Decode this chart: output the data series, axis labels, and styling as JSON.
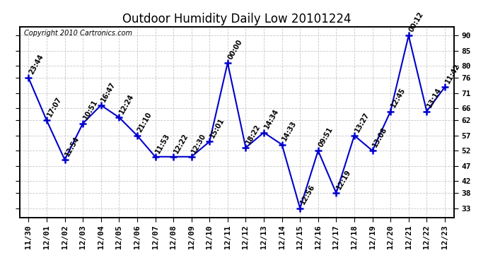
{
  "title": "Outdoor Humidity Daily Low 20101224",
  "copyright": "Copyright 2010 Cartronics.com",
  "x_labels": [
    "11/30",
    "12/01",
    "12/02",
    "12/03",
    "12/04",
    "12/05",
    "12/06",
    "12/07",
    "12/08",
    "12/09",
    "12/10",
    "12/11",
    "12/12",
    "12/13",
    "12/14",
    "12/15",
    "12/16",
    "12/17",
    "12/18",
    "12/19",
    "12/20",
    "12/21",
    "12/22",
    "12/23"
  ],
  "y_values": [
    76,
    62,
    49,
    61,
    67,
    63,
    57,
    50,
    50,
    50,
    55,
    81,
    53,
    58,
    54,
    33,
    52,
    38,
    57,
    52,
    65,
    90,
    65,
    73
  ],
  "time_labels": [
    "23:44",
    "17:07",
    "12:54",
    "10:51",
    "16:47",
    "12:24",
    "21:10",
    "11:53",
    "12:22",
    "12:30",
    "15:01",
    "00:00",
    "18:22",
    "14:34",
    "14:33",
    "12:56",
    "09:51",
    "12:19",
    "13:27",
    "13:08",
    "12:45",
    "00:12",
    "13:14",
    "11:42"
  ],
  "line_color": "#0000cc",
  "bg_color": "#ffffff",
  "grid_color": "#c8c8c8",
  "yticks": [
    33,
    38,
    42,
    47,
    52,
    57,
    62,
    66,
    71,
    76,
    80,
    85,
    90
  ],
  "ylim": [
    30,
    93
  ],
  "title_fontsize": 12,
  "label_fontsize": 7,
  "tick_fontsize": 8,
  "copyright_fontsize": 7
}
